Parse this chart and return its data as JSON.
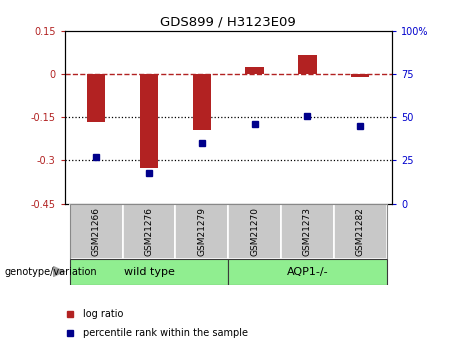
{
  "title": "GDS899 / H3123E09",
  "samples": [
    "GSM21266",
    "GSM21276",
    "GSM21279",
    "GSM21270",
    "GSM21273",
    "GSM21282"
  ],
  "log_ratio": [
    -0.165,
    -0.325,
    -0.195,
    0.025,
    0.065,
    -0.01
  ],
  "percentile_rank": [
    27,
    18,
    35,
    46,
    51,
    45
  ],
  "ylim_left": [
    -0.45,
    0.15
  ],
  "ylim_right": [
    0,
    100
  ],
  "yticks_left": [
    0.15,
    0,
    -0.15,
    -0.3,
    -0.45
  ],
  "yticks_right": [
    100,
    75,
    50,
    25,
    0
  ],
  "hlines": [
    -0.15,
    -0.3
  ],
  "bar_color": "#B22222",
  "dot_color": "#00008B",
  "bar_width": 0.35,
  "group_labels": [
    "wild type",
    "AQP1-/-"
  ],
  "group_ranges": [
    [
      0,
      3
    ],
    [
      3,
      6
    ]
  ],
  "group_color": "#90EE90",
  "group_border_color": "#3a3a3a",
  "sample_box_color": "#C8C8C8",
  "sample_box_border": "#888888",
  "genotype_label": "genotype/variation",
  "legend_items": [
    {
      "label": "log ratio",
      "color": "#B22222"
    },
    {
      "label": "percentile rank within the sample",
      "color": "#00008B"
    }
  ],
  "background_color": "#ffffff",
  "tick_label_color_left": "#B22222",
  "tick_label_color_right": "#0000CD",
  "zero_line_color": "#B22222",
  "dotted_line_color": "#000000"
}
